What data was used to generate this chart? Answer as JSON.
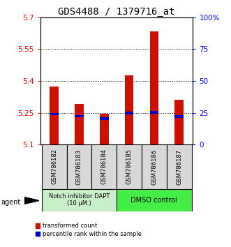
{
  "title": "GDS4488 / 1379716_at",
  "categories": [
    "GSM786182",
    "GSM786183",
    "GSM786184",
    "GSM786185",
    "GSM786186",
    "GSM786187"
  ],
  "red_values": [
    5.375,
    5.29,
    5.245,
    5.425,
    5.635,
    5.31
  ],
  "blue_values": [
    5.243,
    5.233,
    5.222,
    5.248,
    5.252,
    5.232
  ],
  "y_min": 5.1,
  "y_max": 5.7,
  "y_ticks_left": [
    5.1,
    5.25,
    5.4,
    5.55,
    5.7
  ],
  "y_ticks_right": [
    0,
    25,
    50,
    75,
    100
  ],
  "grid_lines": [
    5.25,
    5.4,
    5.55
  ],
  "group1_label": "Notch inhibitor DAPT\n(10 μM.)",
  "group2_label": "DMSO control",
  "group1_color": "#c8f0c8",
  "group2_color": "#44ee44",
  "agent_label": "agent",
  "legend_red": "transformed count",
  "legend_blue": "percentile rank within the sample",
  "bar_color": "#cc1100",
  "blue_color": "#0000cc",
  "bar_width": 0.35,
  "title_fontsize": 10,
  "tick_fontsize": 7.5
}
